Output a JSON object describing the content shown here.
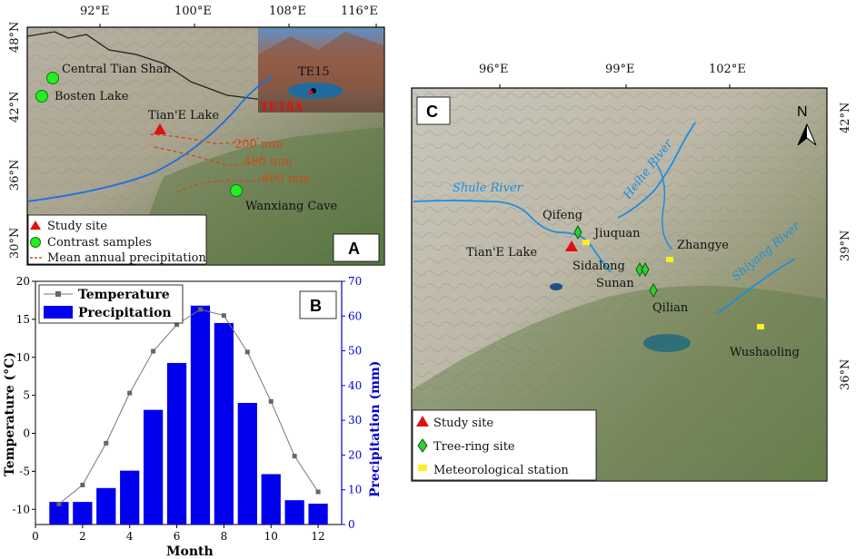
{
  "panelA": {
    "letter": "A",
    "lon_ticks": [
      "92°E",
      "100°E",
      "108°E",
      "116°E"
    ],
    "lat_ticks": [
      "48°N",
      "42°N",
      "36°N",
      "30°N"
    ],
    "sites": {
      "central_tian_shan": "Central Tian Shan",
      "bosten_lake": "Bosten Lake",
      "tiane_lake": "Tian'E Lake",
      "wanxiang_cave": "Wanxiang Cave",
      "te15": "TE15",
      "te18a": "TE18A"
    },
    "isohyets": [
      "200 mm",
      "400 mm",
      "600 mm"
    ],
    "legend": {
      "study_site": "Study site",
      "contrast": "Contrast samples",
      "precip": "Mean annual precipitation"
    }
  },
  "panelB": {
    "letter": "B",
    "legend_temp": "Temperature",
    "legend_precip": "Precipitation",
    "xlabel": "Month",
    "ylabel_left": "Temperature (°C)",
    "ylabel_right": "Precipitation (mm)"
  },
  "chart_data": {
    "type": "bar",
    "x": [
      1,
      2,
      3,
      4,
      5,
      6,
      7,
      8,
      9,
      10,
      11,
      12
    ],
    "xlim": [
      0,
      13
    ],
    "xticks": [
      "0",
      "2",
      "4",
      "6",
      "8",
      "10",
      "12"
    ],
    "series": [
      {
        "name": "Precipitation",
        "type": "bar",
        "axis": "right",
        "values": [
          6.5,
          6.5,
          10.5,
          15.5,
          33,
          46.5,
          63,
          58,
          35,
          14.5,
          7,
          6
        ],
        "color": "#0000ee"
      },
      {
        "name": "Temperature",
        "type": "line",
        "axis": "left",
        "values": [
          -9.3,
          -6.8,
          -1.3,
          5.3,
          10.8,
          14.3,
          16.3,
          15.5,
          10.7,
          4.2,
          -3.0,
          -7.7
        ],
        "color": "#777777"
      }
    ],
    "ylim_left": [
      -12,
      20
    ],
    "yticks_left": [
      "-10",
      "-5",
      "0",
      "5",
      "10",
      "15",
      "20"
    ],
    "ylim_right": [
      0,
      70
    ],
    "yticks_right": [
      "0",
      "10",
      "20",
      "30",
      "40",
      "50",
      "60",
      "70"
    ]
  },
  "panelC": {
    "letter": "C",
    "north": "N",
    "lon_ticks": [
      "96°E",
      "99°E",
      "102°E"
    ],
    "lat_ticks": [
      "42°N",
      "39°N",
      "36°N"
    ],
    "rivers": {
      "shule": "Shule River",
      "heihe": "Heihe River",
      "shiyang": "Shiyang River"
    },
    "sites": {
      "qifeng": "Qifeng",
      "jiuquan": "Jiuquan",
      "tiane_lake": "Tian'E Lake",
      "zhangye": "Zhangye",
      "sidalong": "Sidalong",
      "sunan": "Sunan",
      "qilian": "Qilian",
      "wushaoling": "Wushaoling"
    },
    "legend": {
      "study_site": "Study site",
      "tree_ring": "Tree-ring site",
      "met": "Meteorological station"
    }
  },
  "colors": {
    "bar": "#0000ee",
    "temp_line": "#777777",
    "study_site": "#e01010",
    "contrast": "#22ee22",
    "tree_ring": "#33cc33",
    "station": "#ffee22",
    "river": "#1a8fe0"
  }
}
